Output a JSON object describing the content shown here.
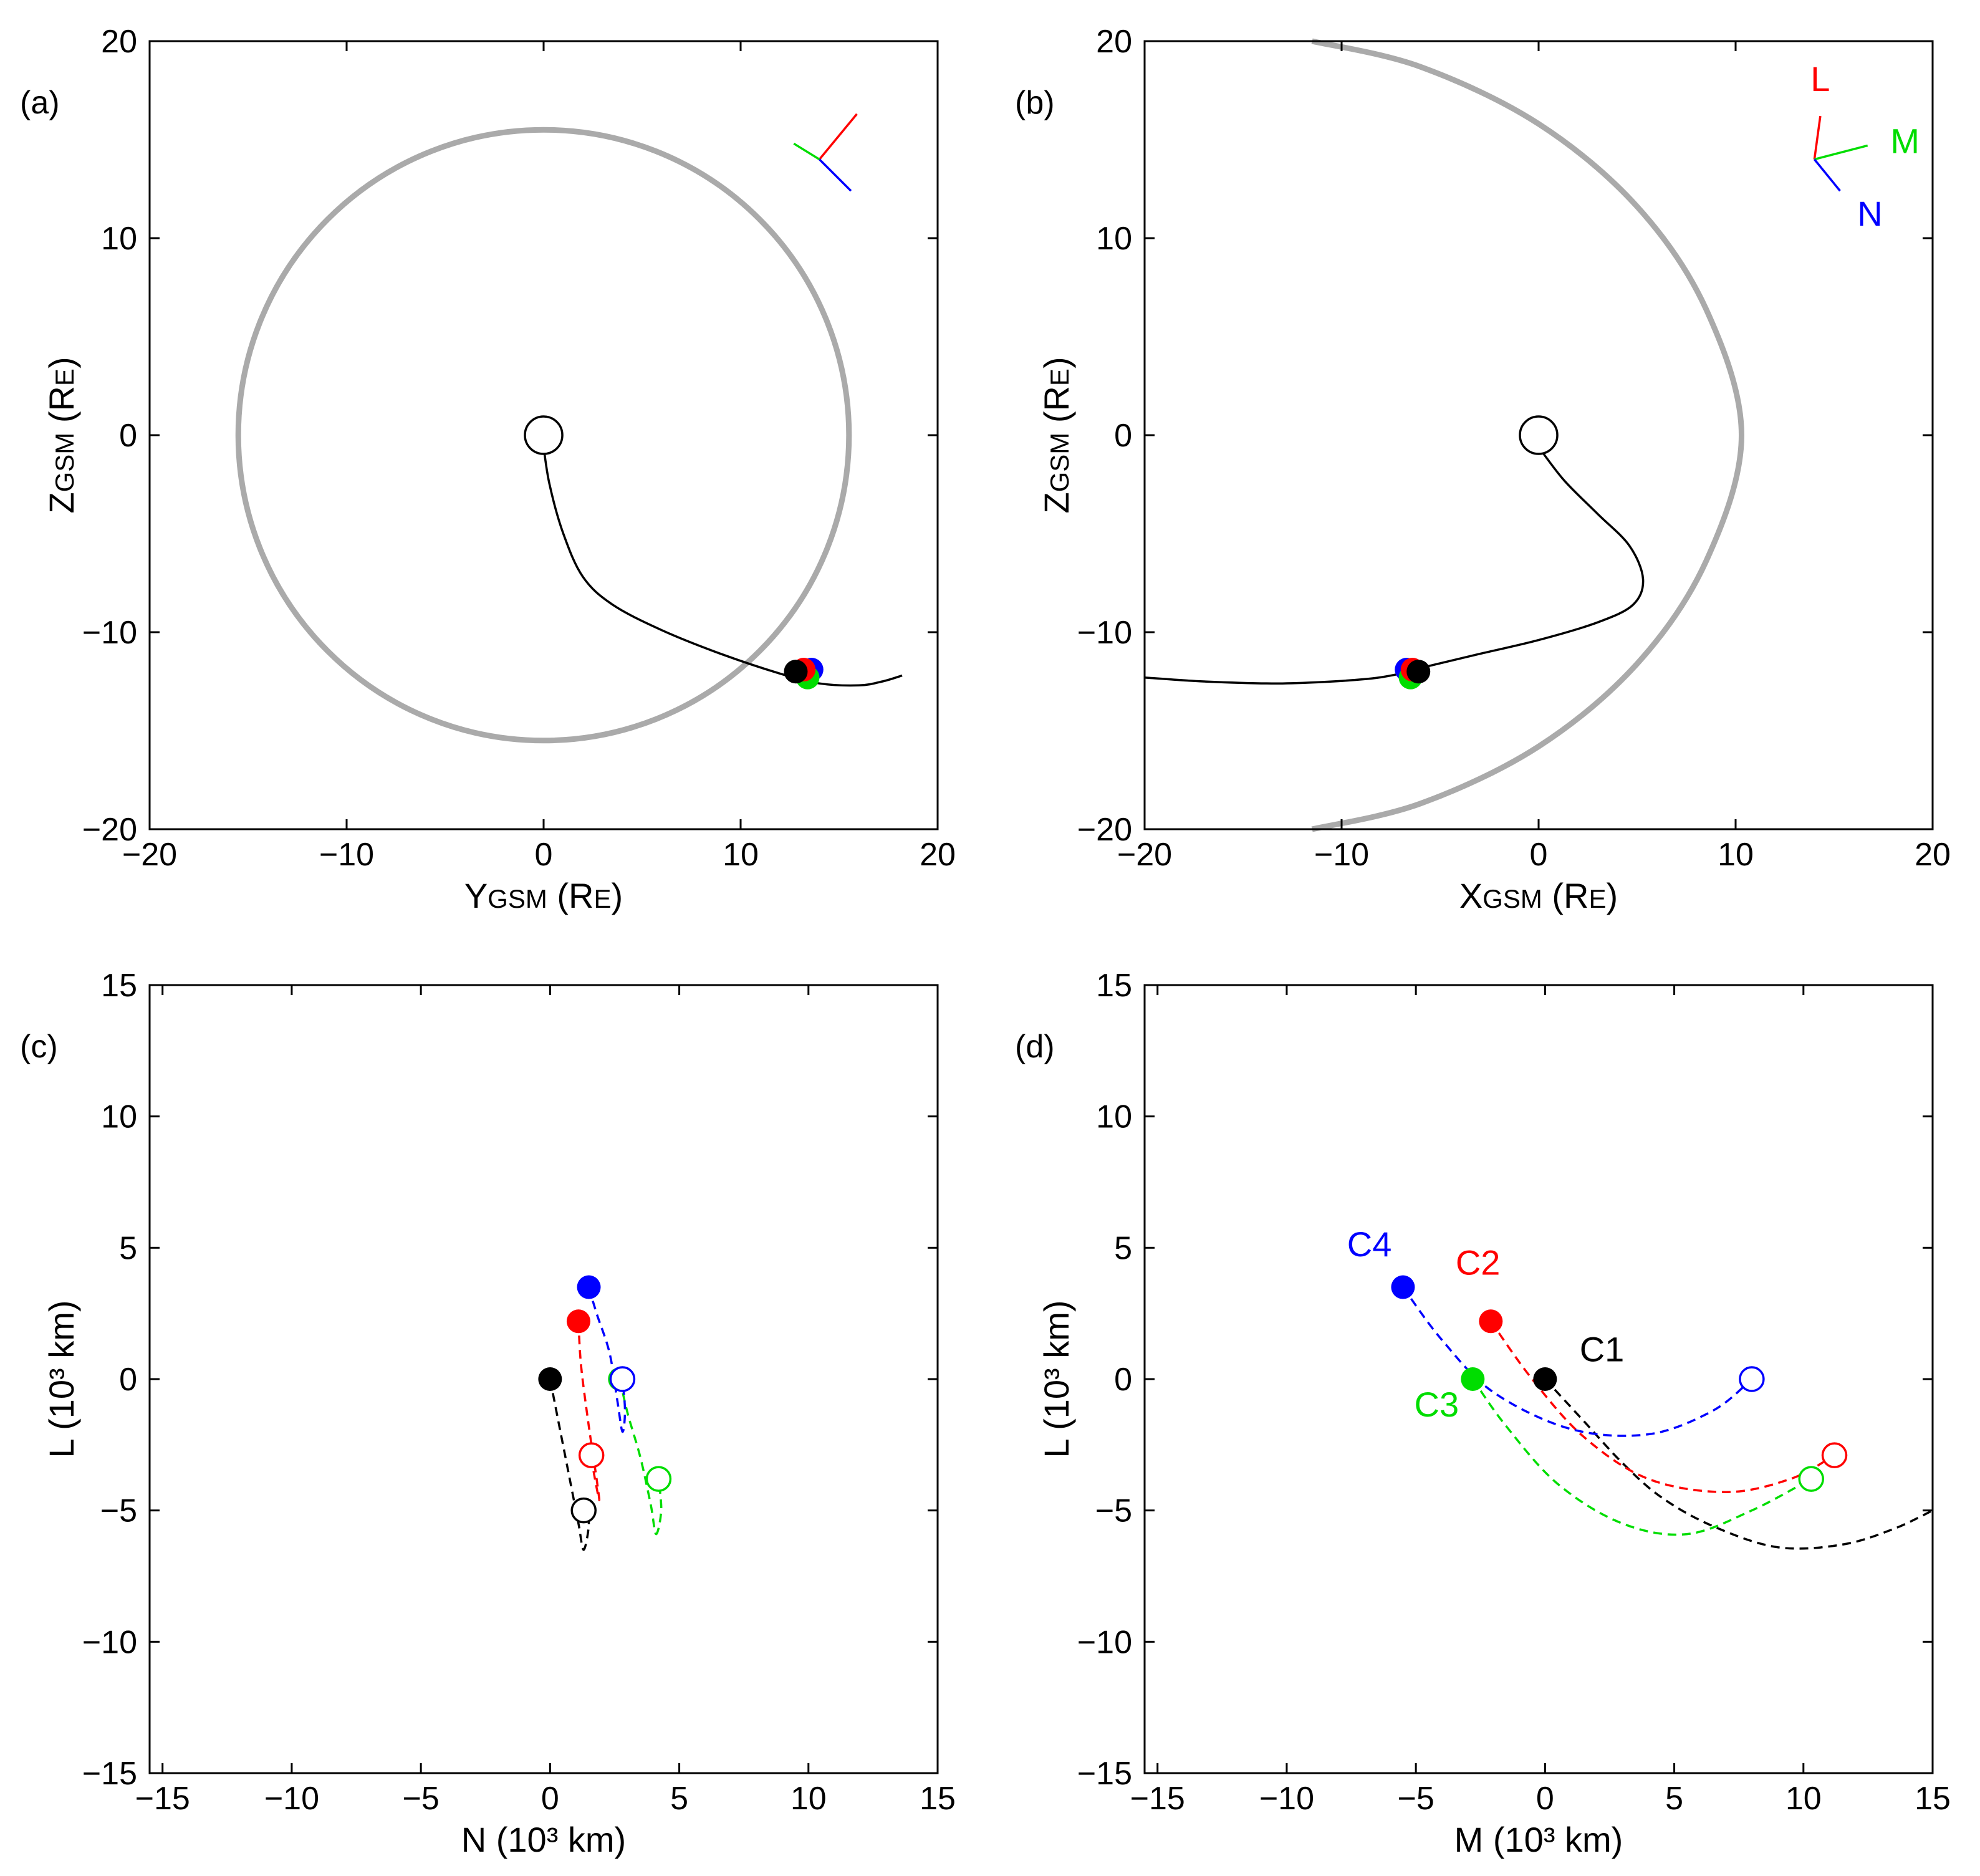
{
  "colors": {
    "C1": "#000000",
    "C2": "#ff0000",
    "C3": "#00dd00",
    "C4": "#0000ff",
    "boundary": "#aaaaaa",
    "L": "#ff0000",
    "M": "#00dd00",
    "N": "#0000ff"
  },
  "chart_data": [
    {
      "id": "a",
      "type": "line",
      "panel_label": "(a)",
      "xlabel_main": "Y",
      "xlabel_sub": "GSM",
      "xlabel_unit": " (R",
      "xlabel_unit_sub": "E",
      "xlabel_close": ")",
      "ylabel_main": "Z",
      "ylabel_sub": "GSM",
      "ylabel_unit": " (R",
      "ylabel_unit_sub": "E",
      "ylabel_close": ")",
      "xlim": [
        -20,
        20
      ],
      "ylim": [
        -20,
        20
      ],
      "xticks": [
        -20,
        -10,
        0,
        10,
        20
      ],
      "yticks": [
        -20,
        -10,
        0,
        10,
        20
      ],
      "xtick_labels": [
        "−20",
        "−10",
        "0",
        "10",
        "20"
      ],
      "ytick_labels": [
        "−20",
        "−10",
        "0",
        "10",
        "20"
      ],
      "earth": {
        "x": 0,
        "y": 0,
        "r": 1
      },
      "magnetopause_circle": {
        "cx": 0,
        "cy": 0,
        "r": 15.5
      },
      "orbit": [
        [
          0,
          -0.6
        ],
        [
          0.3,
          -2.5
        ],
        [
          1,
          -5
        ],
        [
          2,
          -7.2
        ],
        [
          3.5,
          -8.6
        ],
        [
          6,
          -9.9
        ],
        [
          9,
          -11.1
        ],
        [
          12,
          -12.1
        ],
        [
          14,
          -12.6
        ],
        [
          16,
          -12.7
        ],
        [
          17.2,
          -12.5
        ],
        [
          18.2,
          -12.2
        ]
      ],
      "spacecraft": [
        {
          "name": "C4",
          "x": 13.6,
          "y": -11.9
        },
        {
          "name": "C3",
          "x": 13.4,
          "y": -12.3
        },
        {
          "name": "C2",
          "x": 13.2,
          "y": -11.9
        },
        {
          "name": "C1",
          "x": 12.8,
          "y": -12.0
        }
      ],
      "lmn_triad": {
        "origin": [
          14,
          14
        ],
        "L": [
          15.9,
          16.3
        ],
        "M": [
          12.7,
          14.8
        ],
        "N": [
          15.6,
          12.4
        ]
      }
    },
    {
      "id": "b",
      "type": "line",
      "panel_label": "(b)",
      "xlabel_main": "X",
      "xlabel_sub": "GSM",
      "xlabel_unit": " (R",
      "xlabel_unit_sub": "E",
      "xlabel_close": ")",
      "ylabel_main": "Z",
      "ylabel_sub": "GSM",
      "ylabel_unit": " (R",
      "ylabel_unit_sub": "E",
      "ylabel_close": ")",
      "xlim": [
        -20,
        20
      ],
      "ylim": [
        -20,
        20
      ],
      "xticks": [
        -20,
        -10,
        0,
        10,
        20
      ],
      "yticks": [
        -20,
        -10,
        0,
        10,
        20
      ],
      "xtick_labels": [
        "−20",
        "−10",
        "0",
        "10",
        "20"
      ],
      "ytick_labels": [
        "−20",
        "−10",
        "0",
        "10",
        "20"
      ],
      "earth": {
        "x": 0,
        "y": 0,
        "r": 1
      },
      "magnetopause_curve": [
        [
          -11.5,
          20
        ],
        [
          -6,
          18.7
        ],
        [
          0,
          15.8
        ],
        [
          5,
          11.6
        ],
        [
          8.5,
          6.4
        ],
        [
          10.3,
          0
        ],
        [
          8.5,
          -6.4
        ],
        [
          5,
          -11.6
        ],
        [
          0,
          -15.8
        ],
        [
          -6,
          -18.7
        ],
        [
          -11.5,
          -20
        ]
      ],
      "orbit": [
        [
          0,
          -0.6
        ],
        [
          1.3,
          -2.3
        ],
        [
          3,
          -4
        ],
        [
          4.6,
          -5.6
        ],
        [
          5.3,
          -7.3
        ],
        [
          4.8,
          -8.6
        ],
        [
          3,
          -9.5
        ],
        [
          0,
          -10.4
        ],
        [
          -3,
          -11.1
        ],
        [
          -5.5,
          -11.7
        ],
        [
          -7,
          -12.1
        ],
        [
          -9,
          -12.4
        ],
        [
          -13,
          -12.6
        ],
        [
          -17,
          -12.5
        ],
        [
          -20,
          -12.3
        ]
      ],
      "spacecraft": [
        {
          "name": "C4",
          "x": -6.7,
          "y": -11.9
        },
        {
          "name": "C3",
          "x": -6.5,
          "y": -12.3
        },
        {
          "name": "C2",
          "x": -6.4,
          "y": -11.9
        },
        {
          "name": "C1",
          "x": -6.1,
          "y": -12.0
        }
      ],
      "lmn_triad": {
        "origin": [
          14,
          14
        ],
        "L": [
          14.3,
          16.2
        ],
        "M": [
          16.7,
          14.7
        ],
        "N": [
          15.3,
          12.4
        ],
        "label_L": "L",
        "label_M": "M",
        "label_N": "N"
      }
    },
    {
      "id": "c",
      "type": "line",
      "panel_label": "(c)",
      "xlabel": "N (10³ km)",
      "ylabel": "L (10³ km)",
      "xlim": [
        -15.5,
        15
      ],
      "ylim": [
        -15,
        15
      ],
      "xticks": [
        -15,
        -10,
        -5,
        0,
        5,
        10,
        15
      ],
      "yticks": [
        -15,
        -10,
        -5,
        0,
        5,
        10,
        15
      ],
      "xtick_labels": [
        "−15",
        "−10",
        "−5",
        "0",
        "5",
        "10",
        "15"
      ],
      "ytick_labels": [
        "−15",
        "−10",
        "−5",
        "0",
        "5",
        "10",
        "15"
      ],
      "series": [
        {
          "name": "C1",
          "start": [
            0,
            0
          ],
          "end": [
            1.3,
            -5.0
          ],
          "track": [
            [
              0,
              0
            ],
            [
              0.4,
              -2
            ],
            [
              0.8,
              -4
            ],
            [
              1.1,
              -5.5
            ],
            [
              1.3,
              -6.5
            ],
            [
              1.5,
              -5.5
            ],
            [
              1.3,
              -5.0
            ]
          ]
        },
        {
          "name": "C2",
          "start": [
            1.1,
            2.2
          ],
          "end": [
            1.6,
            -2.9
          ],
          "track": [
            [
              1.1,
              2.2
            ],
            [
              1.2,
              0.5
            ],
            [
              1.5,
              -1.8
            ],
            [
              1.8,
              -3.8
            ],
            [
              1.9,
              -4.6
            ],
            [
              1.7,
              -3.6
            ],
            [
              1.6,
              -2.9
            ]
          ]
        },
        {
          "name": "C3",
          "start": [
            2.7,
            0
          ],
          "end": [
            4.2,
            -3.8
          ],
          "track": [
            [
              2.7,
              0
            ],
            [
              3.0,
              -1.3
            ],
            [
              3.5,
              -3
            ],
            [
              3.9,
              -4.8
            ],
            [
              4.1,
              -5.9
            ],
            [
              4.3,
              -5.0
            ],
            [
              4.2,
              -3.8
            ]
          ]
        },
        {
          "name": "C4",
          "start": [
            1.5,
            3.5
          ],
          "end": [
            2.8,
            0.0
          ],
          "track": [
            [
              1.5,
              3.5
            ],
            [
              1.8,
              2.5
            ],
            [
              2.3,
              1.0
            ],
            [
              2.6,
              -0.8
            ],
            [
              2.8,
              -2.0
            ],
            [
              2.9,
              -1.2
            ],
            [
              2.8,
              0.0
            ]
          ]
        }
      ]
    },
    {
      "id": "d",
      "type": "line",
      "panel_label": "(d)",
      "xlabel": "M (10³ km)",
      "ylabel": "L (10³ km)",
      "xlim": [
        -15.5,
        15
      ],
      "ylim": [
        -15,
        15
      ],
      "xticks": [
        -15,
        -10,
        -5,
        0,
        5,
        10,
        15
      ],
      "yticks": [
        -15,
        -10,
        -5,
        0,
        5,
        10,
        15
      ],
      "xtick_labels": [
        "−15",
        "−10",
        "−5",
        "0",
        "5",
        "10",
        "15"
      ],
      "ytick_labels": [
        "−15",
        "−10",
        "−5",
        "0",
        "5",
        "10",
        "15"
      ],
      "series": [
        {
          "name": "C1",
          "label": "C1",
          "start": [
            0,
            0
          ],
          "end": null,
          "label_pos": [
            2.2,
            1.1
          ],
          "track": [
            [
              0,
              0
            ],
            [
              1.5,
              -1.6
            ],
            [
              3,
              -3.2
            ],
            [
              4.5,
              -4.5
            ],
            [
              6.5,
              -5.6
            ],
            [
              9,
              -6.4
            ],
            [
              11.5,
              -6.3
            ],
            [
              13.5,
              -5.7
            ],
            [
              15,
              -5.0
            ]
          ]
        },
        {
          "name": "C2",
          "label": "C2",
          "start": [
            -2.1,
            2.2
          ],
          "end": [
            11.2,
            -2.9
          ],
          "label_pos": [
            -2.6,
            4.4
          ],
          "track": [
            [
              -2.1,
              2.2
            ],
            [
              -0.5,
              0
            ],
            [
              1.5,
              -2.2
            ],
            [
              4,
              -3.8
            ],
            [
              7,
              -4.3
            ],
            [
              9.5,
              -3.8
            ],
            [
              11.2,
              -2.9
            ]
          ]
        },
        {
          "name": "C3",
          "label": "C3",
          "start": [
            -2.8,
            0
          ],
          "end": [
            10.3,
            -3.8
          ],
          "label_pos": [
            -4.2,
            -1.0
          ],
          "track": [
            [
              -2.8,
              0
            ],
            [
              -1.5,
              -1.8
            ],
            [
              0.5,
              -4
            ],
            [
              3,
              -5.5
            ],
            [
              5.5,
              -5.9
            ],
            [
              8,
              -5
            ],
            [
              10.3,
              -3.8
            ]
          ]
        },
        {
          "name": "C4",
          "label": "C4",
          "start": [
            -5.5,
            3.5
          ],
          "end": [
            8.0,
            0.0
          ],
          "label_pos": [
            -6.8,
            5.1
          ],
          "track": [
            [
              -5.5,
              3.5
            ],
            [
              -4,
              1.5
            ],
            [
              -2,
              -0.5
            ],
            [
              1,
              -1.9
            ],
            [
              4,
              -2.1
            ],
            [
              6.5,
              -1.2
            ],
            [
              8,
              0
            ]
          ]
        }
      ]
    }
  ]
}
